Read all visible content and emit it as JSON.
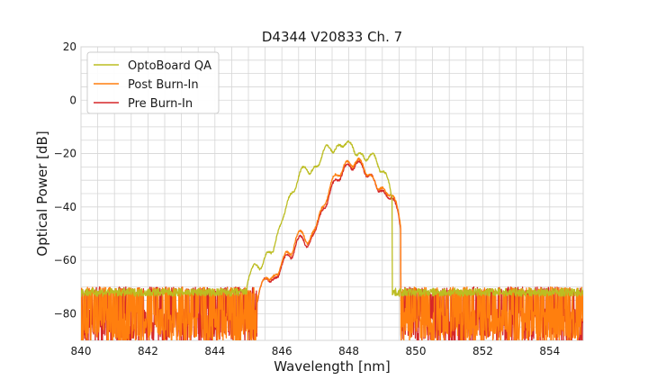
{
  "chart_data": {
    "type": "line",
    "title": "D4344 V20833 Ch. 7",
    "xlabel": "Wavelength [nm]",
    "ylabel": "Optical Power [dB]",
    "xlim": [
      840,
      855
    ],
    "ylim": [
      -90,
      20
    ],
    "xticks": [
      840,
      842,
      844,
      846,
      848,
      850,
      852,
      854
    ],
    "yticks": [
      20,
      0,
      -20,
      -40,
      -60,
      -80
    ],
    "xtick_labels": [
      "840",
      "842",
      "844",
      "846",
      "848",
      "850",
      "852",
      "854"
    ],
    "ytick_labels": [
      "20",
      "0",
      "−20",
      "−40",
      "−60",
      "−80"
    ],
    "grid": true,
    "legend_position": "top-left",
    "series": [
      {
        "name": "OptoBoard QA",
        "color": "#bcbd22",
        "noise_floor": -72,
        "x": [
          845.2,
          845.6,
          846.0,
          846.3,
          846.65,
          847.0,
          847.35,
          847.7,
          848.0,
          848.35,
          848.7,
          849.05
        ],
        "values": [
          -62,
          -57,
          -47,
          -35,
          -25,
          -25,
          -17,
          -17,
          -15.5,
          -20,
          -20,
          -27
        ]
      },
      {
        "name": "Post Burn-In",
        "color": "#ff7f0e",
        "noise_floor": -80,
        "x": [
          845.5,
          845.8,
          846.15,
          846.55,
          846.95,
          847.25,
          847.6,
          847.95,
          848.3,
          848.65,
          849.0,
          849.3
        ],
        "values": [
          -67,
          -66,
          -57,
          -49,
          -50,
          -40,
          -28,
          -23,
          -22,
          -28,
          -33,
          -36
        ]
      },
      {
        "name": "Pre Burn-In",
        "color": "#d62728",
        "noise_floor": -82,
        "x": [
          845.5,
          845.8,
          846.15,
          846.55,
          846.95,
          847.25,
          847.6,
          847.95,
          848.3,
          848.65,
          849.0,
          849.3
        ],
        "values": [
          -67,
          -67,
          -58,
          -51,
          -51,
          -41,
          -30,
          -24,
          -23,
          -28,
          -34,
          -37
        ]
      }
    ]
  }
}
